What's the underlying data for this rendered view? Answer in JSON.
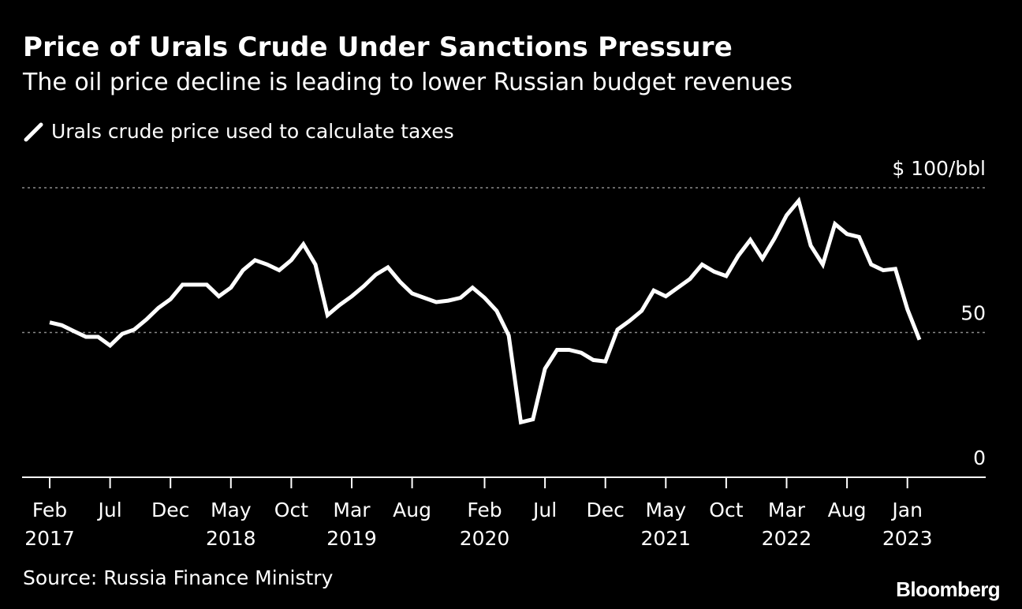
{
  "title": "Price of Urals Crude Under Sanctions Pressure",
  "subtitle": "The oil price decline is leading to lower Russian budget revenues",
  "legend": {
    "label": "Urals crude price used to calculate taxes"
  },
  "source": "Source: Russia Finance Ministry",
  "logo": "Bloomberg",
  "colors": {
    "background": "#000000",
    "line": "#ffffff",
    "grid": "#8a8a8a"
  },
  "chart_data": {
    "type": "line",
    "title": "Price of Urals Crude Under Sanctions Pressure",
    "xlabel": "",
    "ylabel": "$ 100/bbl",
    "ylim": [
      0,
      100
    ],
    "grid_y": [
      50,
      100
    ],
    "y_ticks": [
      {
        "value": 100,
        "label": "$ 100/bbl"
      },
      {
        "value": 50,
        "label": "50"
      },
      {
        "value": 0,
        "label": "0"
      }
    ],
    "x_ticks": [
      {
        "index": 0,
        "month": "Feb",
        "year": "2017"
      },
      {
        "index": 5,
        "month": "Jul",
        "year": ""
      },
      {
        "index": 10,
        "month": "Dec",
        "year": ""
      },
      {
        "index": 15,
        "month": "May",
        "year": "2018"
      },
      {
        "index": 20,
        "month": "Oct",
        "year": ""
      },
      {
        "index": 25,
        "month": "Mar",
        "year": "2019"
      },
      {
        "index": 30,
        "month": "Aug",
        "year": ""
      },
      {
        "index": 36,
        "month": "Feb",
        "year": "2020"
      },
      {
        "index": 41,
        "month": "Jul",
        "year": ""
      },
      {
        "index": 46,
        "month": "Dec",
        "year": ""
      },
      {
        "index": 51,
        "month": "May",
        "year": "2021"
      },
      {
        "index": 56,
        "month": "Oct",
        "year": ""
      },
      {
        "index": 61,
        "month": "Mar",
        "year": "2022"
      },
      {
        "index": 66,
        "month": "Aug",
        "year": ""
      },
      {
        "index": 71,
        "month": "Jan",
        "year": "2023"
      }
    ],
    "series": [
      {
        "name": "Urals crude price used to calculate taxes",
        "start": "2017-02",
        "values": [
          53.5,
          52.5,
          50.5,
          48.5,
          48.5,
          45.5,
          49.5,
          51.0,
          54.5,
          58.5,
          61.5,
          66.5,
          66.5,
          66.5,
          62.5,
          65.5,
          71.5,
          75.0,
          73.5,
          71.5,
          75.0,
          80.5,
          73.5,
          56.0,
          59.5,
          62.5,
          66.0,
          70.0,
          72.5,
          67.5,
          63.5,
          62.0,
          60.5,
          61.0,
          62.0,
          65.5,
          62.0,
          57.5,
          49.0,
          19.0,
          20.0,
          37.5,
          44.0,
          44.0,
          43.0,
          40.5,
          40.0,
          51.0,
          54.0,
          57.5,
          64.5,
          62.5,
          65.5,
          68.5,
          73.5,
          71.0,
          69.5,
          76.5,
          82.0,
          75.5,
          82.5,
          90.5,
          95.5,
          80.0,
          73.5,
          87.5,
          84.0,
          83.0,
          73.5,
          71.5,
          72.0,
          58.0,
          47.5
        ]
      }
    ]
  }
}
